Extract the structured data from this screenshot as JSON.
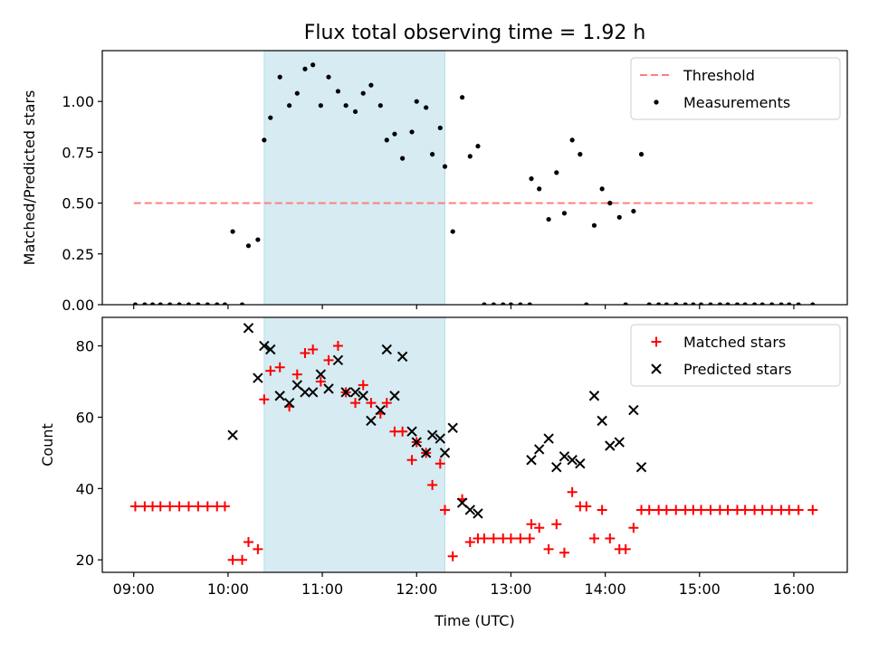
{
  "chart_data": [
    {
      "type": "scatter",
      "title": "Flux total observing time = 1.92 h",
      "xlabel": "",
      "ylabel": "Matched/Predicted stars",
      "xlim": [
        "08:40",
        "16:34"
      ],
      "ylim": [
        0,
        1.25
      ],
      "xticks": [
        "09:00",
        "10:00",
        "11:00",
        "12:00",
        "13:00",
        "14:00",
        "15:00",
        "16:00"
      ],
      "yticks": [
        "0.00",
        "0.25",
        "0.50",
        "0.75",
        "1.00"
      ],
      "shaded_region": {
        "x0": "10:23",
        "x1": "12:18",
        "color": "#add8e6"
      },
      "legend_position": "upper right",
      "series": [
        {
          "name": "Threshold",
          "kind": "dashed-line",
          "color": "#ff7f7f",
          "points": [
            [
              "09:00",
              0.5
            ],
            [
              "16:12",
              0.5
            ]
          ]
        },
        {
          "name": "Measurements",
          "kind": "dot",
          "color": "#000000",
          "points": [
            [
              "09:01",
              0.0
            ],
            [
              "09:07",
              0.0
            ],
            [
              "09:12",
              0.0
            ],
            [
              "09:17",
              0.0
            ],
            [
              "09:23",
              0.0
            ],
            [
              "09:29",
              0.0
            ],
            [
              "09:35",
              0.0
            ],
            [
              "09:41",
              0.0
            ],
            [
              "09:47",
              0.0
            ],
            [
              "09:53",
              0.0
            ],
            [
              "09:58",
              0.0
            ],
            [
              "10:03",
              0.36
            ],
            [
              "10:09",
              0.0
            ],
            [
              "10:13",
              0.29
            ],
            [
              "10:19",
              0.32
            ],
            [
              "10:23",
              0.81
            ],
            [
              "10:27",
              0.92
            ],
            [
              "10:33",
              1.12
            ],
            [
              "10:39",
              0.98
            ],
            [
              "10:44",
              1.04
            ],
            [
              "10:49",
              1.16
            ],
            [
              "10:54",
              1.18
            ],
            [
              "10:59",
              0.98
            ],
            [
              "11:04",
              1.12
            ],
            [
              "11:10",
              1.05
            ],
            [
              "11:15",
              0.98
            ],
            [
              "11:21",
              0.95
            ],
            [
              "11:26",
              1.04
            ],
            [
              "11:31",
              1.08
            ],
            [
              "11:37",
              0.98
            ],
            [
              "11:41",
              0.81
            ],
            [
              "11:46",
              0.84
            ],
            [
              "11:51",
              0.72
            ],
            [
              "11:57",
              0.85
            ],
            [
              "12:00",
              1.0
            ],
            [
              "12:06",
              0.97
            ],
            [
              "12:10",
              0.74
            ],
            [
              "12:15",
              0.87
            ],
            [
              "12:18",
              0.68
            ],
            [
              "12:23",
              0.36
            ],
            [
              "12:29",
              1.02
            ],
            [
              "12:34",
              0.73
            ],
            [
              "12:39",
              0.78
            ],
            [
              "12:43",
              0.0
            ],
            [
              "12:49",
              0.0
            ],
            [
              "12:55",
              0.0
            ],
            [
              "13:00",
              0.0
            ],
            [
              "13:06",
              0.0
            ],
            [
              "13:12",
              0.0
            ],
            [
              "13:13",
              0.62
            ],
            [
              "13:18",
              0.57
            ],
            [
              "13:24",
              0.42
            ],
            [
              "13:29",
              0.65
            ],
            [
              "13:34",
              0.45
            ],
            [
              "13:39",
              0.81
            ],
            [
              "13:44",
              0.74
            ],
            [
              "13:48",
              0.0
            ],
            [
              "13:53",
              0.39
            ],
            [
              "13:58",
              0.57
            ],
            [
              "14:03",
              0.5
            ],
            [
              "14:09",
              0.43
            ],
            [
              "14:13",
              0.0
            ],
            [
              "14:18",
              0.46
            ],
            [
              "14:23",
              0.74
            ],
            [
              "14:28",
              0.0
            ],
            [
              "14:34",
              0.0
            ],
            [
              "14:39",
              0.0
            ],
            [
              "14:45",
              0.0
            ],
            [
              "14:51",
              0.0
            ],
            [
              "14:56",
              0.0
            ],
            [
              "15:01",
              0.0
            ],
            [
              "15:07",
              0.0
            ],
            [
              "15:13",
              0.0
            ],
            [
              "15:18",
              0.0
            ],
            [
              "15:24",
              0.0
            ],
            [
              "15:29",
              0.0
            ],
            [
              "15:35",
              0.0
            ],
            [
              "15:40",
              0.0
            ],
            [
              "15:46",
              0.0
            ],
            [
              "15:52",
              0.0
            ],
            [
              "15:57",
              0.0
            ],
            [
              "16:03",
              0.0
            ],
            [
              "16:12",
              0.0
            ]
          ]
        }
      ]
    },
    {
      "type": "scatter",
      "title": "",
      "xlabel": "Time (UTC)",
      "ylabel": "Count",
      "xlim": [
        "08:40",
        "16:34"
      ],
      "ylim": [
        16.5,
        88
      ],
      "xticks": [
        "09:00",
        "10:00",
        "11:00",
        "12:00",
        "13:00",
        "14:00",
        "15:00",
        "16:00"
      ],
      "yticks": [
        "20",
        "40",
        "60",
        "80"
      ],
      "shaded_region": {
        "x0": "10:23",
        "x1": "12:18",
        "color": "#add8e6"
      },
      "legend_position": "upper right",
      "series": [
        {
          "name": "Matched stars",
          "kind": "plus",
          "color": "#ff0000",
          "points": [
            [
              "09:01",
              35
            ],
            [
              "09:07",
              35
            ],
            [
              "09:12",
              35
            ],
            [
              "09:17",
              35
            ],
            [
              "09:23",
              35
            ],
            [
              "09:29",
              35
            ],
            [
              "09:35",
              35
            ],
            [
              "09:41",
              35
            ],
            [
              "09:47",
              35
            ],
            [
              "09:53",
              35
            ],
            [
              "09:58",
              35
            ],
            [
              "10:03",
              20
            ],
            [
              "10:09",
              20
            ],
            [
              "10:13",
              25
            ],
            [
              "10:19",
              23
            ],
            [
              "10:23",
              65
            ],
            [
              "10:27",
              73
            ],
            [
              "10:33",
              74
            ],
            [
              "10:39",
              63
            ],
            [
              "10:44",
              72
            ],
            [
              "10:49",
              78
            ],
            [
              "10:54",
              79
            ],
            [
              "10:59",
              70
            ],
            [
              "11:04",
              76
            ],
            [
              "11:10",
              80
            ],
            [
              "11:15",
              67
            ],
            [
              "11:21",
              64
            ],
            [
              "11:26",
              69
            ],
            [
              "11:31",
              64
            ],
            [
              "11:37",
              61
            ],
            [
              "11:41",
              64
            ],
            [
              "11:46",
              56
            ],
            [
              "11:51",
              56
            ],
            [
              "11:57",
              48
            ],
            [
              "12:00",
              53
            ],
            [
              "12:06",
              50
            ],
            [
              "12:10",
              41
            ],
            [
              "12:15",
              47
            ],
            [
              "12:18",
              34
            ],
            [
              "12:23",
              21
            ],
            [
              "12:29",
              37
            ],
            [
              "12:34",
              25
            ],
            [
              "12:39",
              26
            ],
            [
              "12:43",
              26
            ],
            [
              "12:49",
              26
            ],
            [
              "12:55",
              26
            ],
            [
              "13:00",
              26
            ],
            [
              "13:06",
              26
            ],
            [
              "13:12",
              26
            ],
            [
              "13:13",
              30
            ],
            [
              "13:18",
              29
            ],
            [
              "13:24",
              23
            ],
            [
              "13:29",
              30
            ],
            [
              "13:34",
              22
            ],
            [
              "13:39",
              39
            ],
            [
              "13:44",
              35
            ],
            [
              "13:48",
              35
            ],
            [
              "13:53",
              26
            ],
            [
              "13:58",
              34
            ],
            [
              "14:03",
              26
            ],
            [
              "14:09",
              23
            ],
            [
              "14:13",
              23
            ],
            [
              "14:18",
              29
            ],
            [
              "14:23",
              34
            ],
            [
              "14:28",
              34
            ],
            [
              "14:34",
              34
            ],
            [
              "14:39",
              34
            ],
            [
              "14:45",
              34
            ],
            [
              "14:51",
              34
            ],
            [
              "14:56",
              34
            ],
            [
              "15:01",
              34
            ],
            [
              "15:07",
              34
            ],
            [
              "15:13",
              34
            ],
            [
              "15:18",
              34
            ],
            [
              "15:24",
              34
            ],
            [
              "15:29",
              34
            ],
            [
              "15:35",
              34
            ],
            [
              "15:40",
              34
            ],
            [
              "15:46",
              34
            ],
            [
              "15:52",
              34
            ],
            [
              "15:57",
              34
            ],
            [
              "16:03",
              34
            ],
            [
              "16:12",
              34
            ]
          ]
        },
        {
          "name": "Predicted stars",
          "kind": "x",
          "color": "#000000",
          "points": [
            [
              "10:03",
              55
            ],
            [
              "10:13",
              85
            ],
            [
              "10:19",
              71
            ],
            [
              "10:23",
              80
            ],
            [
              "10:27",
              79
            ],
            [
              "10:33",
              66
            ],
            [
              "10:39",
              64
            ],
            [
              "10:44",
              69
            ],
            [
              "10:49",
              67
            ],
            [
              "10:54",
              67
            ],
            [
              "10:59",
              72
            ],
            [
              "11:04",
              68
            ],
            [
              "11:10",
              76
            ],
            [
              "11:15",
              67
            ],
            [
              "11:21",
              67
            ],
            [
              "11:26",
              66
            ],
            [
              "11:31",
              59
            ],
            [
              "11:37",
              62
            ],
            [
              "11:41",
              79
            ],
            [
              "11:46",
              66
            ],
            [
              "11:51",
              77
            ],
            [
              "11:57",
              56
            ],
            [
              "12:00",
              53
            ],
            [
              "12:06",
              50
            ],
            [
              "12:10",
              55
            ],
            [
              "12:15",
              54
            ],
            [
              "12:18",
              50
            ],
            [
              "12:23",
              57
            ],
            [
              "12:29",
              36
            ],
            [
              "12:34",
              34
            ],
            [
              "12:39",
              33
            ],
            [
              "13:13",
              48
            ],
            [
              "13:18",
              51
            ],
            [
              "13:24",
              54
            ],
            [
              "13:29",
              46
            ],
            [
              "13:34",
              49
            ],
            [
              "13:39",
              48
            ],
            [
              "13:44",
              47
            ],
            [
              "13:53",
              66
            ],
            [
              "13:58",
              59
            ],
            [
              "14:03",
              52
            ],
            [
              "14:09",
              53
            ],
            [
              "14:18",
              62
            ],
            [
              "14:23",
              46
            ]
          ]
        }
      ]
    }
  ]
}
